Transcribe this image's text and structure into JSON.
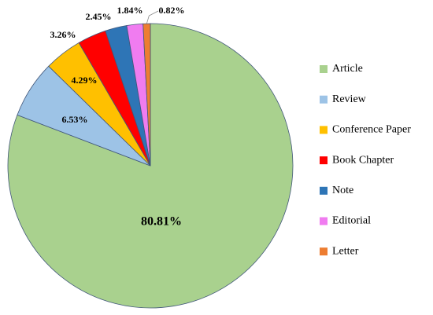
{
  "chart_data": {
    "type": "pie",
    "categories": [
      "Article",
      "Review",
      "Conference Paper",
      "Book Chapter",
      "Note",
      "Editorial",
      "Letter"
    ],
    "values": [
      80.81,
      6.53,
      4.29,
      3.26,
      2.45,
      1.84,
      0.82
    ],
    "value_labels": [
      "80.81%",
      "6.53%",
      "4.29%",
      "3.26%",
      "2.45%",
      "1.84%",
      "0.82%"
    ],
    "colors": [
      "#a9d18e",
      "#9dc3e6",
      "#ffc000",
      "#ff0000",
      "#2e75b6",
      "#f07cf0",
      "#ed7d31"
    ],
    "legend": "right"
  }
}
